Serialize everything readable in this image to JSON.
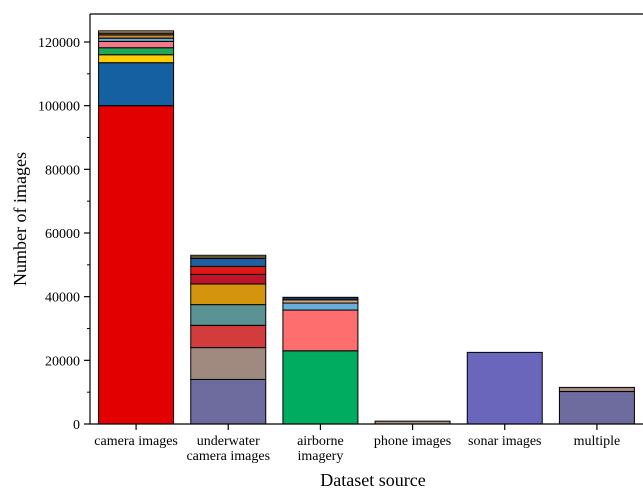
{
  "chart_data": {
    "type": "bar",
    "stacked": true,
    "title": "",
    "xlabel": "Dataset source",
    "ylabel": "Number of images",
    "ylim": [
      0,
      130000
    ],
    "yticks": [
      0,
      20000,
      40000,
      60000,
      80000,
      100000,
      120000
    ],
    "ytick_labels": [
      "0",
      "20000",
      "40000",
      "60000",
      "80000",
      "100000",
      "120000"
    ],
    "legend": "none",
    "grid": false,
    "categories": [
      [
        "camera images"
      ],
      [
        "underwater",
        "camera images"
      ],
      [
        "airborne",
        "imagery"
      ],
      [
        "phone images"
      ],
      [
        "sonar images"
      ],
      [
        "multiple"
      ]
    ],
    "stacks": [
      [
        {
          "value": 100000,
          "color": "#e30000"
        },
        {
          "value": 13500,
          "color": "#1560a0"
        },
        {
          "value": 2500,
          "color": "#ffcc00"
        },
        {
          "value": 2200,
          "color": "#1fa85a"
        },
        {
          "value": 2000,
          "color": "#f07a8a"
        },
        {
          "value": 1000,
          "color": "#6ab0d8"
        },
        {
          "value": 1000,
          "color": "#c8882e"
        },
        {
          "value": 600,
          "color": "#555555"
        },
        {
          "value": 700,
          "color": "#d4a070"
        }
      ],
      [
        {
          "value": 14000,
          "color": "#6e6b9e"
        },
        {
          "value": 10000,
          "color": "#a08a80"
        },
        {
          "value": 7000,
          "color": "#d33c3c"
        },
        {
          "value": 6500,
          "color": "#5b9294"
        },
        {
          "value": 6500,
          "color": "#d4940e"
        },
        {
          "value": 3000,
          "color": "#c0142c"
        },
        {
          "value": 2500,
          "color": "#e01818"
        },
        {
          "value": 2500,
          "color": "#1d5fa0"
        },
        {
          "value": 500,
          "color": "#d6a04c"
        },
        {
          "value": 500,
          "color": "#f5e0a0"
        }
      ],
      [
        {
          "value": 23000,
          "color": "#00ac60"
        },
        {
          "value": 12800,
          "color": "#ff6e6e"
        },
        {
          "value": 2200,
          "color": "#6aaedc"
        },
        {
          "value": 1000,
          "color": "#e0a868"
        },
        {
          "value": 800,
          "color": "#1a3a6e"
        }
      ],
      [
        {
          "value": 900,
          "color": "#a89080"
        }
      ],
      [
        {
          "value": 22500,
          "color": "#6a66bc"
        }
      ],
      [
        {
          "value": 10200,
          "color": "#6e6b9e"
        },
        {
          "value": 1300,
          "color": "#a08a80"
        }
      ]
    ]
  }
}
